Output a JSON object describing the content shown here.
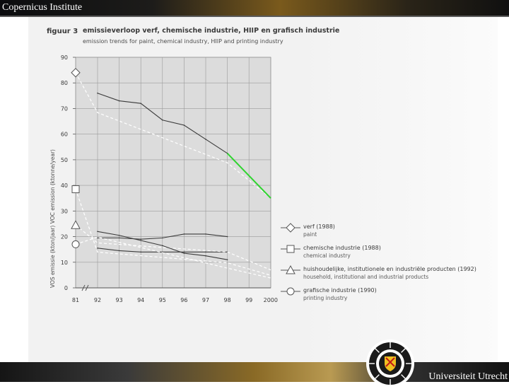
{
  "header": {
    "left_text": "Copernicus Institute"
  },
  "footer": {
    "right_text": "Universiteit Utrecht"
  },
  "figure": {
    "label": "figuur 3",
    "title": "emissieverloop verf, chemische industrie, HIIP en grafisch industrie",
    "subtitle": "emission trends for paint, chemical industry, HIIP and printing industry"
  },
  "chart_data": {
    "type": "line",
    "ylabel": "VOS emissie (kton/jaar) VOC emission (ktonne/year)",
    "xlabel": "",
    "x": [
      "81",
      "92",
      "93",
      "94",
      "95",
      "96",
      "97",
      "98",
      "99",
      "2000"
    ],
    "ylim": [
      0,
      90
    ],
    "yticks": [
      "0",
      "10",
      "20",
      "30",
      "40",
      "50",
      "60",
      "70",
      "80",
      "90"
    ],
    "grid": true,
    "legend_position": "right",
    "series": [
      {
        "name": "verf (1988)",
        "name_en": "paint",
        "marker": "diamond",
        "start_value": 84,
        "points": [
          [
            "92",
            76
          ],
          [
            "93",
            73
          ],
          [
            "94",
            72
          ],
          [
            "95",
            65.5
          ],
          [
            "96",
            63.5
          ],
          [
            "97",
            58
          ],
          [
            "98",
            52.5
          ]
        ],
        "projection_to": [
          "2000",
          35
        ],
        "projection_color": "#2fd42f"
      },
      {
        "name": "chemische industrie (1988)",
        "name_en": "chemical industry",
        "marker": "square",
        "start_value": 38.5,
        "points": [
          [
            "92",
            15.5
          ],
          [
            "93",
            14.5
          ],
          [
            "94",
            14
          ],
          [
            "95",
            14
          ],
          [
            "96",
            14
          ],
          [
            "97",
            14
          ],
          [
            "98",
            14
          ]
        ]
      },
      {
        "name": "huishoudelijke, institutionele en industriële producten (1992)",
        "name_en": "household, institutional and industrial products",
        "marker": "triangle",
        "start_value": 24.5,
        "points": [
          [
            "92",
            19.5
          ],
          [
            "93",
            19.5
          ],
          [
            "94",
            19
          ],
          [
            "95",
            19.5
          ],
          [
            "96",
            21
          ],
          [
            "97",
            21
          ],
          [
            "98",
            20
          ]
        ]
      },
      {
        "name": "grafische industrie (1990)",
        "name_en": "printing industry",
        "marker": "circle",
        "start_value": 17,
        "points": [
          [
            "92",
            22
          ],
          [
            "93",
            20.5
          ],
          [
            "94",
            18.5
          ],
          [
            "95",
            16.5
          ],
          [
            "96",
            13.5
          ],
          [
            "97",
            12.5
          ],
          [
            "98",
            11
          ]
        ]
      }
    ],
    "colors": {
      "line": "#3b3b3b",
      "target_line": "#ffffff",
      "grid": "#9a9a9a",
      "plot_bg": "#dcdcdc",
      "marker_fill": "#ffffff",
      "accent": "#2fd42f"
    }
  }
}
